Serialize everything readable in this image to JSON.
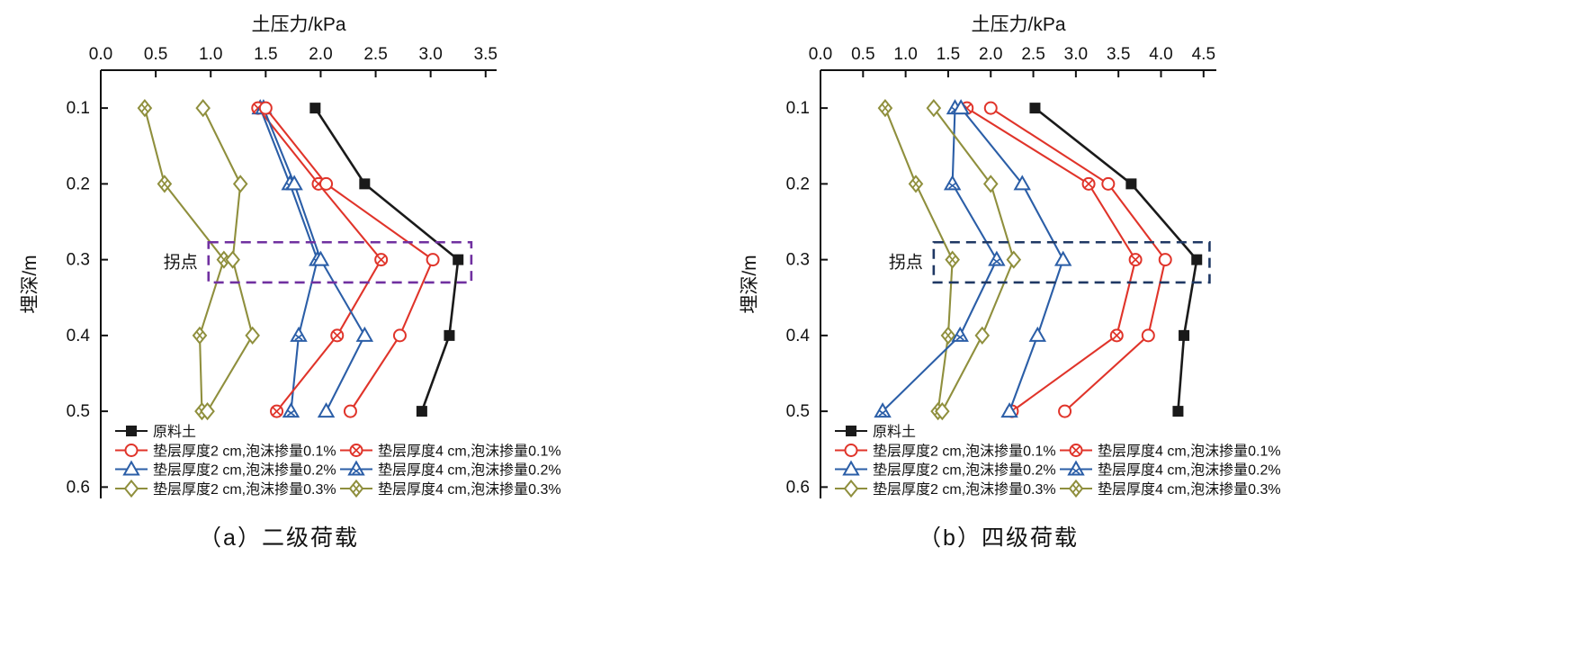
{
  "chart_data": [
    {
      "type": "line",
      "panel": "a",
      "caption": "（a）二级荷载",
      "xlabel": "土压力/kPa",
      "ylabel": "埋深/m",
      "xlim": [
        0,
        3.6
      ],
      "ylim": [
        0.05,
        0.615
      ],
      "xticks": [
        "0.0",
        "0.5",
        "1.0",
        "1.5",
        "2.0",
        "2.5",
        "3.0",
        "3.5"
      ],
      "yticks": [
        "0.1",
        "0.2",
        "0.3",
        "0.4",
        "0.5",
        "0.6"
      ],
      "grid": false,
      "legend_position": "inside-bottom-left",
      "depths": [
        0.1,
        0.2,
        0.3,
        0.4,
        0.5
      ],
      "annotation": {
        "label": "拐点",
        "box_x": [
          0.98,
          3.37
        ],
        "box_depth": [
          0.277,
          0.33
        ],
        "color": "#7030a0"
      },
      "series": [
        {
          "name": "原料土",
          "marker": "square-filled",
          "color": "#1a1a1a",
          "values": [
            1.95,
            2.4,
            3.25,
            3.17,
            2.92
          ]
        },
        {
          "name": "垫层厚度2 cm,泡沫掺量0.1%",
          "marker": "circle-open",
          "color": "#e0342a",
          "values": [
            1.5,
            2.05,
            3.02,
            2.72,
            2.27
          ]
        },
        {
          "name": "垫层厚度2 cm,泡沫掺量0.2%",
          "marker": "triangle-open",
          "color": "#2b5ea7",
          "values": [
            1.48,
            1.76,
            2.0,
            2.4,
            2.05
          ]
        },
        {
          "name": "垫层厚度2 cm,泡沫掺量0.3%",
          "marker": "diamond-open",
          "color": "#8f8f3d",
          "values": [
            0.93,
            1.27,
            1.2,
            1.38,
            0.97
          ]
        },
        {
          "name": "垫层厚度4 cm,泡沫掺量0.1%",
          "marker": "circle-cross",
          "color": "#e0342a",
          "values": [
            1.43,
            1.98,
            2.55,
            2.15,
            1.6
          ]
        },
        {
          "name": "垫层厚度4 cm,泡沫掺量0.2%",
          "marker": "triangle-cross",
          "color": "#2b5ea7",
          "values": [
            1.45,
            1.72,
            1.97,
            1.8,
            1.73
          ]
        },
        {
          "name": "垫层厚度4 cm,泡沫掺量0.3%",
          "marker": "diamond-cross",
          "color": "#8f8f3d",
          "values": [
            0.4,
            0.58,
            1.12,
            0.9,
            0.92
          ]
        }
      ]
    },
    {
      "type": "line",
      "panel": "b",
      "caption": "（b）四级荷载",
      "xlabel": "土压力/kPa",
      "ylabel": "埋深/m",
      "xlim": [
        0,
        4.65
      ],
      "ylim": [
        0.05,
        0.615
      ],
      "xticks": [
        "0.0",
        "0.5",
        "1.0",
        "1.5",
        "2.0",
        "2.5",
        "3.0",
        "3.5",
        "4.0",
        "4.5"
      ],
      "yticks": [
        "0.1",
        "0.2",
        "0.3",
        "0.4",
        "0.5",
        "0.6"
      ],
      "grid": false,
      "legend_position": "inside-bottom-left",
      "depths": [
        0.1,
        0.2,
        0.3,
        0.4,
        0.5
      ],
      "annotation": {
        "label": "拐点",
        "box_x": [
          1.33,
          4.57
        ],
        "box_depth": [
          0.277,
          0.33
        ],
        "color": "#1f3864"
      },
      "series": [
        {
          "name": "原料土",
          "marker": "square-filled",
          "color": "#1a1a1a",
          "values": [
            2.52,
            3.65,
            4.42,
            4.27,
            4.2
          ]
        },
        {
          "name": "垫层厚度2 cm,泡沫掺量0.1%",
          "marker": "circle-open",
          "color": "#e0342a",
          "values": [
            2.0,
            3.38,
            4.05,
            3.85,
            2.87
          ]
        },
        {
          "name": "垫层厚度2 cm,泡沫掺量0.2%",
          "marker": "triangle-open",
          "color": "#2b5ea7",
          "values": [
            1.65,
            2.37,
            2.85,
            2.55,
            2.22
          ]
        },
        {
          "name": "垫层厚度2 cm,泡沫掺量0.3%",
          "marker": "diamond-open",
          "color": "#8f8f3d",
          "values": [
            1.33,
            2.0,
            2.27,
            1.9,
            1.43
          ]
        },
        {
          "name": "垫层厚度4 cm,泡沫掺量0.1%",
          "marker": "circle-cross",
          "color": "#e0342a",
          "values": [
            1.72,
            3.15,
            3.7,
            3.48,
            2.25
          ]
        },
        {
          "name": "垫层厚度4 cm,泡沫掺量0.2%",
          "marker": "triangle-cross",
          "color": "#2b5ea7",
          "values": [
            1.58,
            1.55,
            2.07,
            1.64,
            0.73
          ]
        },
        {
          "name": "垫层厚度4 cm,泡沫掺量0.3%",
          "marker": "diamond-cross",
          "color": "#8f8f3d",
          "values": [
            0.76,
            1.12,
            1.55,
            1.5,
            1.38
          ]
        }
      ]
    }
  ]
}
